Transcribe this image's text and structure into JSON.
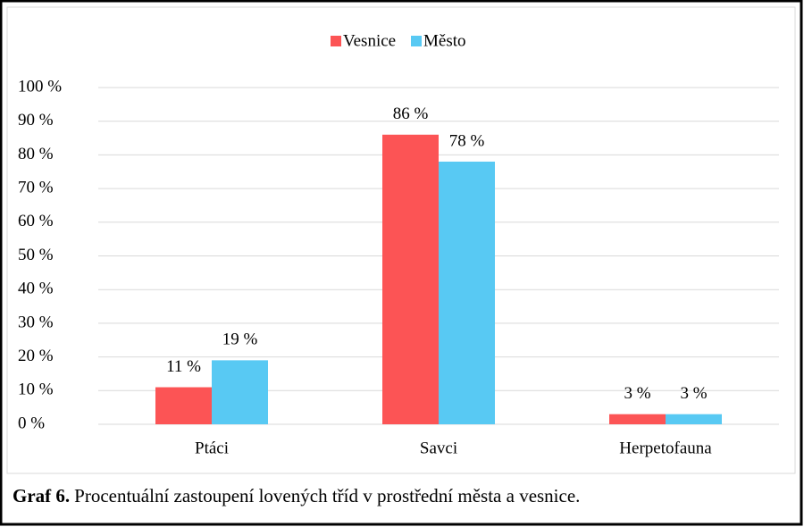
{
  "chart_data": {
    "type": "bar",
    "categories": [
      "Ptáci",
      "Savci",
      "Herpetofauna"
    ],
    "series": [
      {
        "name": "Vesnice",
        "color": "#fc5455",
        "values": [
          11,
          86,
          3
        ],
        "value_labels": [
          "11 %",
          "86 %",
          "3 %"
        ]
      },
      {
        "name": "Město",
        "color": "#58c9f3",
        "values": [
          19,
          78,
          3
        ],
        "value_labels": [
          "19 %",
          "78 %",
          "3 %"
        ]
      }
    ],
    "ylim": [
      0,
      100
    ],
    "yticks": [
      {
        "value": 0,
        "label": "0 %"
      },
      {
        "value": 10,
        "label": "10 %"
      },
      {
        "value": 20,
        "label": "20 %"
      },
      {
        "value": 30,
        "label": "30 %"
      },
      {
        "value": 40,
        "label": "40 %"
      },
      {
        "value": 50,
        "label": "50 %"
      },
      {
        "value": 60,
        "label": "60 %"
      },
      {
        "value": 70,
        "label": "70 %"
      },
      {
        "value": 80,
        "label": "80 %"
      },
      {
        "value": 90,
        "label": "90 %"
      },
      {
        "value": 100,
        "label": "100 %"
      }
    ],
    "grid": true,
    "legend": "top"
  },
  "caption": {
    "label": "Graf 6.",
    "text": "Procentuální zastoupení lovených tříd v prostřední města a vesnice."
  }
}
